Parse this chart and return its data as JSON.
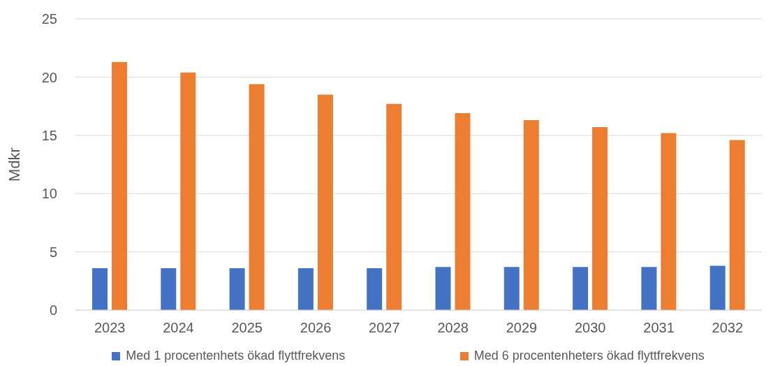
{
  "chart_data": {
    "type": "bar",
    "ylabel": "Mdkr",
    "categories": [
      "2023",
      "2024",
      "2025",
      "2026",
      "2027",
      "2028",
      "2029",
      "2030",
      "2031",
      "2032"
    ],
    "series": [
      {
        "name": "Med 1 procentenhets ökad flyttfrekvens",
        "color": "#4472c4",
        "values": [
          3.6,
          3.6,
          3.6,
          3.6,
          3.6,
          3.7,
          3.7,
          3.7,
          3.7,
          3.8
        ]
      },
      {
        "name": "Med 6 procentenheters ökad flyttfrekvens",
        "color": "#ed7d31",
        "values": [
          21.3,
          20.4,
          19.4,
          18.5,
          17.7,
          16.9,
          16.3,
          15.7,
          15.2,
          14.6
        ]
      }
    ],
    "ylim": [
      0,
      25
    ],
    "yticks": [
      0,
      5,
      10,
      15,
      20,
      25
    ],
    "grid": "y",
    "legend": "bottom"
  }
}
